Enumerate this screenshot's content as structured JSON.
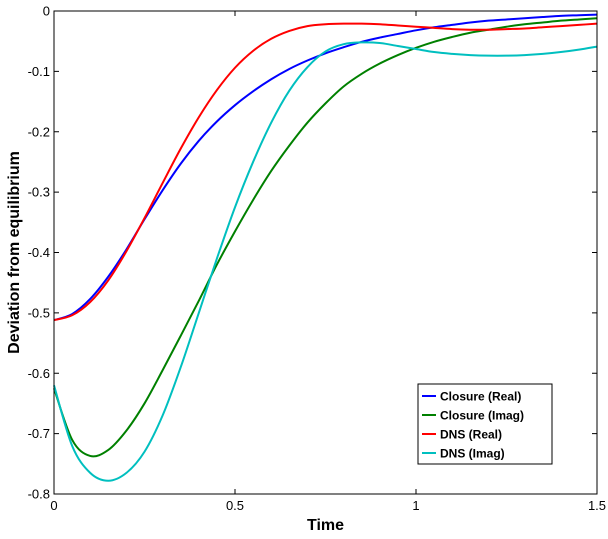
{
  "chart_data": {
    "type": "line",
    "title": "",
    "xlabel": "Time",
    "ylabel": "Deviation from equilibrium",
    "xlim": [
      0,
      1.5
    ],
    "ylim": [
      -0.8,
      0
    ],
    "xticks": [
      0,
      0.5,
      1,
      1.5
    ],
    "xtick_labels": [
      "0",
      "0.5",
      "1",
      "1.5"
    ],
    "yticks": [
      0,
      -0.1,
      -0.2,
      -0.3,
      -0.4,
      -0.5,
      -0.6,
      -0.7,
      -0.8
    ],
    "ytick_labels": [
      "0",
      "-0.1",
      "-0.2",
      "-0.3",
      "-0.4",
      "-0.5",
      "-0.6",
      "-0.7",
      "-0.8"
    ],
    "grid": false,
    "legend_position": "bottom-right",
    "series": [
      {
        "name": "Closure (Real)",
        "color": "#0000ff",
        "x": [
          0,
          0.05,
          0.1,
          0.15,
          0.2,
          0.25,
          0.3,
          0.35,
          0.4,
          0.45,
          0.5,
          0.55,
          0.6,
          0.65,
          0.7,
          0.75,
          0.8,
          0.85,
          0.9,
          0.95,
          1.0,
          1.05,
          1.1,
          1.15,
          1.2,
          1.25,
          1.3,
          1.35,
          1.4,
          1.45,
          1.5
        ],
        "y": [
          -0.512,
          -0.502,
          -0.477,
          -0.44,
          -0.395,
          -0.345,
          -0.297,
          -0.253,
          -0.215,
          -0.183,
          -0.156,
          -0.133,
          -0.113,
          -0.096,
          -0.082,
          -0.07,
          -0.06,
          -0.051,
          -0.044,
          -0.038,
          -0.032,
          -0.027,
          -0.023,
          -0.019,
          -0.016,
          -0.014,
          -0.012,
          -0.01,
          -0.008,
          -0.007,
          -0.006
        ]
      },
      {
        "name": "Closure (Imag)",
        "color": "#008000",
        "x": [
          0,
          0.05,
          0.1,
          0.15,
          0.2,
          0.25,
          0.3,
          0.35,
          0.4,
          0.45,
          0.5,
          0.55,
          0.6,
          0.65,
          0.7,
          0.75,
          0.8,
          0.85,
          0.9,
          0.95,
          1.0,
          1.05,
          1.1,
          1.15,
          1.2,
          1.25,
          1.3,
          1.35,
          1.4,
          1.45,
          1.5
        ],
        "y": [
          -0.625,
          -0.71,
          -0.737,
          -0.727,
          -0.695,
          -0.65,
          -0.595,
          -0.538,
          -0.48,
          -0.42,
          -0.365,
          -0.313,
          -0.265,
          -0.223,
          -0.185,
          -0.153,
          -0.125,
          -0.104,
          -0.087,
          -0.073,
          -0.061,
          -0.051,
          -0.043,
          -0.036,
          -0.031,
          -0.026,
          -0.022,
          -0.019,
          -0.016,
          -0.014,
          -0.012
        ]
      },
      {
        "name": "DNS (Real)",
        "color": "#ff0000",
        "x": [
          0,
          0.05,
          0.1,
          0.15,
          0.2,
          0.25,
          0.3,
          0.35,
          0.4,
          0.45,
          0.5,
          0.55,
          0.6,
          0.65,
          0.7,
          0.75,
          0.8,
          0.85,
          0.9,
          0.95,
          1.0,
          1.05,
          1.1,
          1.15,
          1.2,
          1.25,
          1.3,
          1.35,
          1.4,
          1.45,
          1.5
        ],
        "y": [
          -0.512,
          -0.504,
          -0.482,
          -0.446,
          -0.398,
          -0.343,
          -0.285,
          -0.228,
          -0.176,
          -0.131,
          -0.094,
          -0.066,
          -0.046,
          -0.033,
          -0.025,
          -0.022,
          -0.021,
          -0.021,
          -0.022,
          -0.024,
          -0.026,
          -0.028,
          -0.03,
          -0.031,
          -0.031,
          -0.03,
          -0.029,
          -0.027,
          -0.025,
          -0.023,
          -0.021
        ]
      },
      {
        "name": "DNS (Imag)",
        "color": "#00bfbf",
        "x": [
          0,
          0.05,
          0.1,
          0.15,
          0.2,
          0.25,
          0.3,
          0.35,
          0.4,
          0.45,
          0.5,
          0.55,
          0.6,
          0.65,
          0.7,
          0.75,
          0.8,
          0.85,
          0.9,
          0.95,
          1.0,
          1.05,
          1.1,
          1.15,
          1.2,
          1.25,
          1.3,
          1.35,
          1.4,
          1.45,
          1.5
        ],
        "y": [
          -0.62,
          -0.72,
          -0.765,
          -0.778,
          -0.765,
          -0.73,
          -0.67,
          -0.59,
          -0.5,
          -0.41,
          -0.325,
          -0.25,
          -0.185,
          -0.132,
          -0.093,
          -0.067,
          -0.055,
          -0.052,
          -0.053,
          -0.058,
          -0.063,
          -0.068,
          -0.071,
          -0.073,
          -0.074,
          -0.074,
          -0.073,
          -0.071,
          -0.068,
          -0.064,
          -0.059
        ]
      }
    ]
  }
}
